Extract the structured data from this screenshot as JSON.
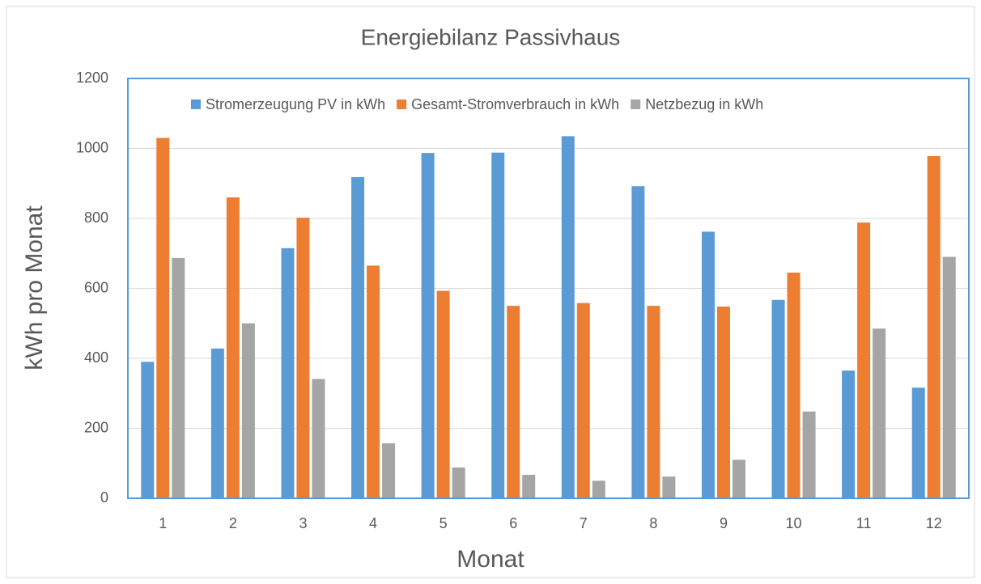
{
  "chart_data": {
    "type": "bar",
    "title": "Energiebilanz Passivhaus",
    "x_label": "Monat",
    "y_label": "kWh pro Monat",
    "categories": [
      1,
      2,
      3,
      4,
      5,
      6,
      7,
      8,
      9,
      10,
      11,
      12
    ],
    "series": [
      {
        "name": "Stromerzeugung PV in kWh",
        "color": "#5b9bd5",
        "values": [
          390,
          428,
          715,
          918,
          987,
          988,
          1035,
          892,
          762,
          567,
          365,
          316
        ]
      },
      {
        "name": "Gesamt-Stromverbrauch in kWh",
        "color": "#ed7d31",
        "values": [
          1030,
          860,
          802,
          665,
          593,
          550,
          558,
          550,
          548,
          645,
          788,
          978
        ]
      },
      {
        "name": "Netzbezug in kWh",
        "color": "#a5a5a5",
        "values": [
          687,
          500,
          341,
          157,
          88,
          67,
          50,
          62,
          110,
          248,
          485,
          690
        ]
      }
    ],
    "ylim": [
      0,
      1200
    ],
    "yticks": [
      0,
      200,
      400,
      600,
      800,
      1000,
      1200
    ],
    "grid": true,
    "legend": "top"
  }
}
